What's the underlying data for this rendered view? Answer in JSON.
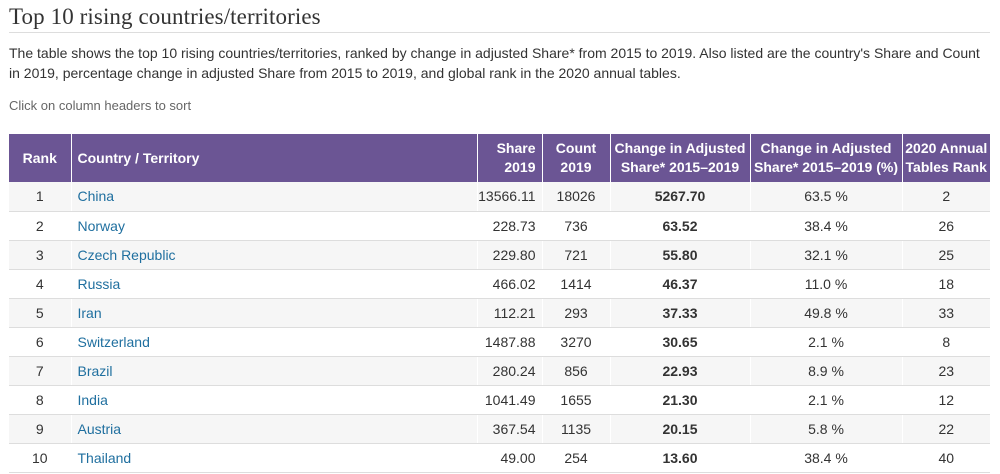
{
  "page": {
    "title": "Top 10 rising countries/territories",
    "description": "The table shows the top 10 rising countries/territories, ranked by change in adjusted Share* from 2015 to 2019. Also listed are the country's Share and Count in 2019, percentage change in adjusted Share from 2015 to 2019, and global rank in the 2020 annual tables.",
    "sort_hint": "Click on column headers to sort"
  },
  "table": {
    "headers": {
      "rank": "Rank",
      "country": "Country / Territory",
      "share_line1": "Share",
      "share_line2": "2019",
      "count_line1": "Count",
      "count_line2": "2019",
      "change_line1": "Change in Adjusted",
      "change_line2": "Share* 2015–2019",
      "pct_line1": "Change in Adjusted",
      "pct_line2": "Share* 2015–2019 (%)",
      "rank2020_line1": "2020 Annual",
      "rank2020_line2": "Tables Rank"
    },
    "rows": [
      {
        "rank": "1",
        "country": "China",
        "share": "13566.11",
        "count": "18026",
        "change": "5267.70",
        "pct": "63.5 %",
        "rank2020": "2"
      },
      {
        "rank": "2",
        "country": "Norway",
        "share": "228.73",
        "count": "736",
        "change": "63.52",
        "pct": "38.4 %",
        "rank2020": "26"
      },
      {
        "rank": "3",
        "country": "Czech Republic",
        "share": "229.80",
        "count": "721",
        "change": "55.80",
        "pct": "32.1 %",
        "rank2020": "25"
      },
      {
        "rank": "4",
        "country": "Russia",
        "share": "466.02",
        "count": "1414",
        "change": "46.37",
        "pct": "11.0 %",
        "rank2020": "18"
      },
      {
        "rank": "5",
        "country": "Iran",
        "share": "112.21",
        "count": "293",
        "change": "37.33",
        "pct": "49.8 %",
        "rank2020": "33"
      },
      {
        "rank": "6",
        "country": "Switzerland",
        "share": "1487.88",
        "count": "3270",
        "change": "30.65",
        "pct": "2.1 %",
        "rank2020": "8"
      },
      {
        "rank": "7",
        "country": "Brazil",
        "share": "280.24",
        "count": "856",
        "change": "22.93",
        "pct": "8.9 %",
        "rank2020": "23"
      },
      {
        "rank": "8",
        "country": "India",
        "share": "1041.49",
        "count": "1655",
        "change": "21.30",
        "pct": "2.1 %",
        "rank2020": "12"
      },
      {
        "rank": "9",
        "country": "Austria",
        "share": "367.54",
        "count": "1135",
        "change": "20.15",
        "pct": "5.8 %",
        "rank2020": "22"
      },
      {
        "rank": "10",
        "country": "Thailand",
        "share": "49.00",
        "count": "254",
        "change": "13.60",
        "pct": "38.4 %",
        "rank2020": "40"
      }
    ]
  },
  "colors": {
    "header_bg": "#6b5594",
    "link": "#1f6f9f"
  }
}
